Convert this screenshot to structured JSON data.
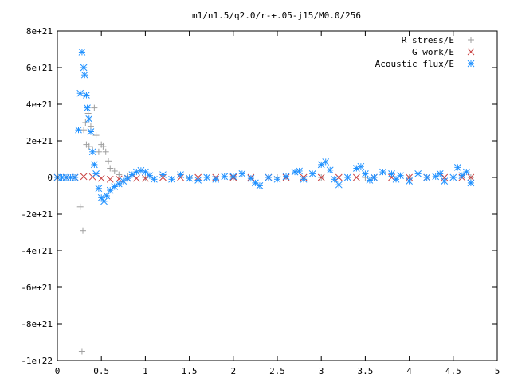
{
  "chart_data": {
    "type": "scatter",
    "title": "m1/n1.5/q2.0/r-+.05-j15/M0.0/256",
    "xlabel": "",
    "ylabel": "",
    "xlim": [
      0,
      5
    ],
    "ylim": [
      -1e+22,
      8e+21
    ],
    "x_ticks": [
      0,
      0.5,
      1,
      1.5,
      2,
      2.5,
      3,
      3.5,
      4,
      4.5,
      5
    ],
    "x_tick_labels": [
      "0",
      "0.5",
      "1",
      "1.5",
      "2",
      "2.5",
      "3",
      "3.5",
      "4",
      "4.5",
      "5"
    ],
    "y_ticks": [
      -1e+22,
      -8e+21,
      -6e+21,
      -4e+21,
      -2e+21,
      0,
      2e+21,
      4e+21,
      6e+21,
      8e+21
    ],
    "y_tick_labels": [
      "-1e+22",
      "-8e+21",
      "-6e+21",
      "-4e+21",
      "-2e+21",
      "0",
      "2e+21",
      "4e+21",
      "6e+21",
      "8e+21"
    ],
    "grid": false,
    "legend_position": "top-right",
    "series": [
      {
        "name": "R stress/E",
        "marker": "plus",
        "color": "#a0a0a0",
        "x": [
          0.0,
          0.1,
          0.2,
          0.26,
          0.28,
          0.29,
          0.3,
          0.32,
          0.33,
          0.35,
          0.36,
          0.38,
          0.4,
          0.42,
          0.44,
          0.47,
          0.5,
          0.52,
          0.55,
          0.58,
          0.6,
          0.65,
          0.7,
          0.8,
          1.0,
          1.5,
          2.0,
          2.5,
          3.0,
          3.5,
          4.0,
          4.5,
          4.7
        ],
        "y": [
          0,
          0,
          0,
          -1.6e+21,
          -9.5e+21,
          -2.9e+21,
          2.6e+21,
          3e+21,
          1.8e+21,
          3.5e+21,
          1.7e+21,
          2.8e+21,
          1.5e+21,
          3.8e+21,
          2.3e+21,
          1.4e+21,
          1.8e+21,
          1.7e+21,
          1.4e+21,
          9e+20,
          5e+20,
          3.5e+20,
          1.5e+20,
          5e+19,
          0,
          0,
          0,
          0,
          0,
          0,
          0,
          0,
          0
        ]
      },
      {
        "name": "G work/E",
        "marker": "cross",
        "color": "#c84040",
        "x": [
          0.0,
          0.1,
          0.2,
          0.3,
          0.4,
          0.5,
          0.6,
          0.7,
          0.8,
          0.9,
          1.0,
          1.2,
          1.4,
          1.6,
          1.8,
          2.0,
          2.2,
          2.4,
          2.6,
          2.8,
          3.0,
          3.2,
          3.4,
          3.6,
          3.8,
          4.0,
          4.2,
          4.4,
          4.6,
          4.7
        ],
        "y": [
          0,
          0,
          0,
          5e+19,
          3e+19,
          -5e+19,
          -1e+20,
          -8e+19,
          -5e+19,
          -5e+19,
          -5e+19,
          0,
          0,
          0,
          0,
          0,
          0,
          0,
          0,
          0,
          0,
          0,
          0,
          0,
          0,
          0,
          0,
          0,
          0,
          0
        ]
      },
      {
        "name": "Acoustic flux/E",
        "marker": "star",
        "color": "#1e90ff",
        "x": [
          0.0,
          0.05,
          0.1,
          0.15,
          0.2,
          0.24,
          0.26,
          0.28,
          0.3,
          0.31,
          0.33,
          0.34,
          0.36,
          0.38,
          0.4,
          0.42,
          0.44,
          0.47,
          0.5,
          0.53,
          0.56,
          0.6,
          0.65,
          0.7,
          0.75,
          0.8,
          0.85,
          0.9,
          0.95,
          1.0,
          1.05,
          1.1,
          1.2,
          1.3,
          1.4,
          1.5,
          1.6,
          1.7,
          1.8,
          1.9,
          2.0,
          2.1,
          2.2,
          2.25,
          2.3,
          2.4,
          2.5,
          2.6,
          2.7,
          2.75,
          2.8,
          2.9,
          3.0,
          3.05,
          3.1,
          3.15,
          3.2,
          3.3,
          3.4,
          3.45,
          3.5,
          3.55,
          3.6,
          3.7,
          3.8,
          3.85,
          3.9,
          4.0,
          4.1,
          4.2,
          4.3,
          4.35,
          4.4,
          4.5,
          4.55,
          4.6,
          4.65,
          4.7
        ],
        "y": [
          0,
          0,
          0,
          0,
          0,
          2.6e+21,
          4.6e+21,
          6.85e+21,
          6e+21,
          5.6e+21,
          4.5e+21,
          3.8e+21,
          3.2e+21,
          2.5e+21,
          1.4e+21,
          7e+20,
          2e+20,
          -6e+20,
          -1.1e+21,
          -1.3e+21,
          -1e+21,
          -7e+20,
          -5e+20,
          -3.5e+20,
          -2e+20,
          -5e+19,
          1.5e+20,
          3e+20,
          3.8e+20,
          3e+20,
          1e+20,
          -1e+20,
          1.5e+20,
          -1e+20,
          1.5e+20,
          -5e+19,
          -1.5e+20,
          0,
          -1e+20,
          5e+19,
          5e+19,
          2e+20,
          -5e+19,
          -3e+20,
          -4.5e+20,
          0,
          -1e+20,
          5e+19,
          3e+20,
          3.5e+20,
          -1e+20,
          2e+20,
          7e+20,
          8.5e+20,
          4e+20,
          -1e+20,
          -4e+20,
          0,
          5e+20,
          6e+20,
          2e+20,
          -1.5e+20,
          0,
          3e+20,
          2e+20,
          -1e+20,
          1e+20,
          -2e+20,
          2e+20,
          0,
          5e+19,
          2e+20,
          -2e+20,
          0,
          5.5e+20,
          1e+20,
          3e+20,
          -3e+20
        ]
      }
    ]
  }
}
